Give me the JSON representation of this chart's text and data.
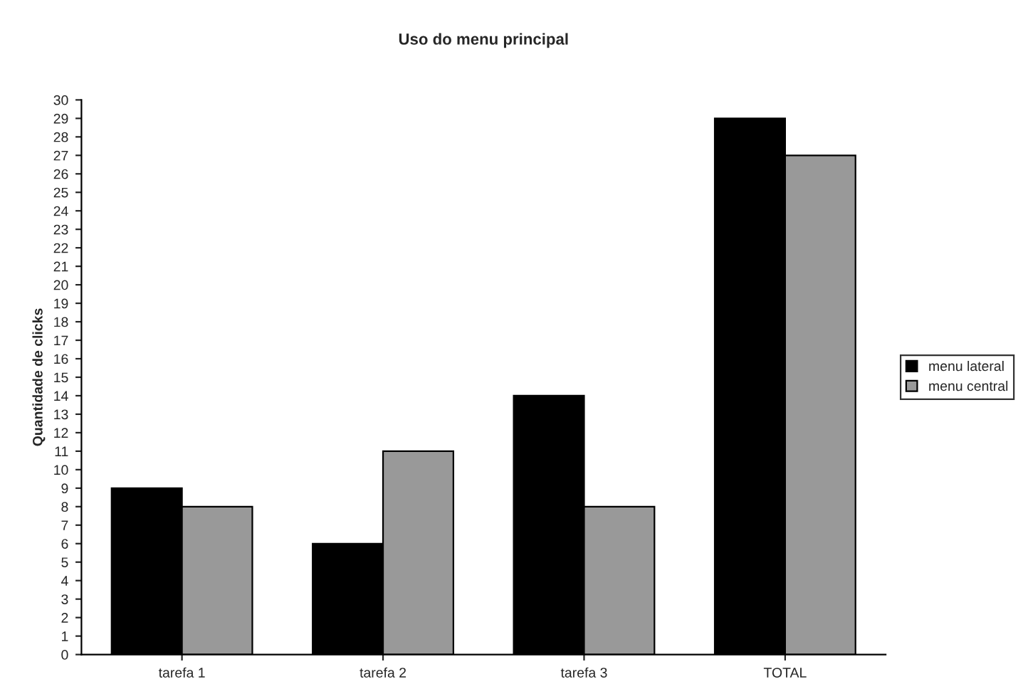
{
  "chart_data": {
    "type": "bar",
    "title": "Uso do menu principal",
    "ylabel": "Quantidade de clicks",
    "categories": [
      "tarefa 1",
      "tarefa 2",
      "tarefa 3",
      "TOTAL"
    ],
    "series": [
      {
        "name": "menu lateral",
        "color": "#000000",
        "values": [
          9,
          6,
          14,
          29
        ]
      },
      {
        "name": "menu central",
        "color": "#999999",
        "values": [
          8,
          11,
          8,
          27
        ]
      }
    ],
    "ylim": [
      0,
      30
    ],
    "yticks": [
      0,
      1,
      2,
      3,
      4,
      5,
      6,
      7,
      8,
      9,
      10,
      11,
      12,
      13,
      14,
      15,
      16,
      17,
      18,
      19,
      20,
      21,
      22,
      23,
      24,
      25,
      26,
      27,
      28,
      29,
      30
    ],
    "grid": false,
    "legend": "right"
  }
}
